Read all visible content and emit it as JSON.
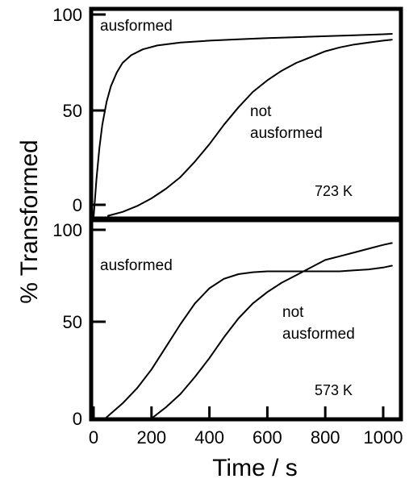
{
  "chart_data": [
    {
      "type": "line",
      "panel": "top",
      "xlabel": "Time / s",
      "ylabel": "% Transformed",
      "xlim": [
        0,
        1050
      ],
      "ylim": [
        0,
        100
      ],
      "yticks": [
        "0",
        "50",
        "100"
      ],
      "annotation": "723 K",
      "series": [
        {
          "name": "ausformed",
          "label_lines": [
            "ausformed"
          ],
          "x": [
            0,
            10,
            20,
            30,
            45,
            60,
            80,
            100,
            130,
            170,
            220,
            300,
            400,
            500,
            600,
            700,
            800,
            900,
            1000,
            1030
          ],
          "y": [
            0,
            20,
            36,
            48,
            60,
            68,
            75,
            80,
            84,
            87,
            89,
            90.5,
            91.5,
            92.2,
            92.8,
            93.3,
            93.8,
            94.3,
            94.8,
            95
          ]
        },
        {
          "name": "not ausformed",
          "label_lines": [
            "not",
            "ausformed"
          ],
          "x": [
            50,
            100,
            150,
            200,
            250,
            300,
            350,
            400,
            450,
            500,
            550,
            600,
            650,
            700,
            750,
            800,
            850,
            900,
            950,
            1000,
            1030
          ],
          "y": [
            1,
            3,
            6,
            10,
            15,
            21,
            29,
            38,
            48,
            57,
            65,
            71,
            76,
            80,
            83,
            86,
            88,
            89.5,
            90.5,
            91.5,
            92
          ]
        }
      ]
    },
    {
      "type": "line",
      "panel": "bottom",
      "xlabel": "Time / s",
      "ylabel": "% Transformed",
      "xlim": [
        0,
        1050
      ],
      "ylim": [
        0,
        100
      ],
      "xticks": [
        "0",
        "200",
        "400",
        "600",
        "800",
        "1000"
      ],
      "yticks": [
        "0",
        "50",
        "100"
      ],
      "annotation": "573 K",
      "series": [
        {
          "name": "ausformed",
          "label_lines": [
            "ausformed"
          ],
          "x": [
            40,
            100,
            150,
            200,
            250,
            300,
            350,
            400,
            450,
            500,
            550,
            600,
            650,
            700,
            750,
            800,
            850,
            900,
            950,
            1000,
            1030
          ],
          "y": [
            0,
            8,
            16,
            26,
            38,
            50,
            61,
            69,
            74,
            76.5,
            77.5,
            78,
            78,
            78,
            78,
            78,
            78,
            78.5,
            79,
            80,
            81
          ]
        },
        {
          "name": "not ausformed",
          "label_lines": [
            "not",
            "ausformed"
          ],
          "x": [
            200,
            250,
            300,
            350,
            400,
            450,
            500,
            550,
            600,
            650,
            700,
            750,
            800,
            850,
            900,
            950,
            1000,
            1030
          ],
          "y": [
            0,
            6,
            13,
            22,
            32,
            43,
            53,
            61,
            67,
            72,
            76,
            80,
            84,
            86,
            88,
            90,
            92,
            93
          ]
        }
      ]
    }
  ]
}
